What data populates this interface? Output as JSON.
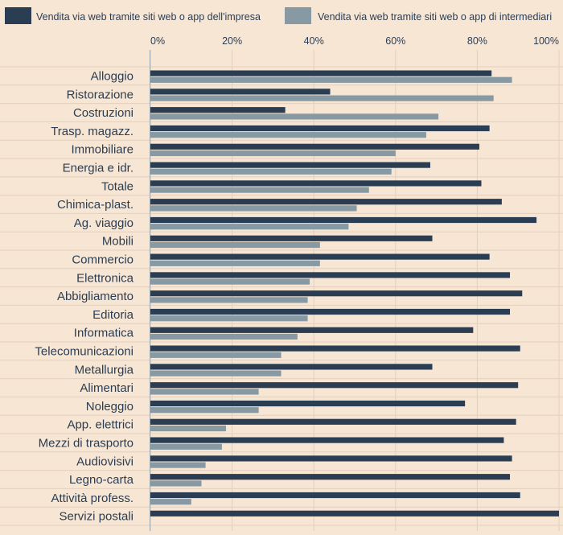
{
  "chart_data": {
    "type": "bar",
    "orientation": "horizontal",
    "title": "",
    "xlabel": "",
    "ylabel": "",
    "xlim": [
      0,
      100
    ],
    "x_ticks": [
      "0%",
      "20%",
      "40%",
      "60%",
      "80%",
      "100%"
    ],
    "x_tick_values": [
      0,
      20,
      40,
      60,
      80,
      100
    ],
    "legend_position": "top",
    "grid": true,
    "colors": {
      "series1": "#2b3d52",
      "series2": "#8799a2",
      "background": "#f7e6d4",
      "grid": "#e3cfbd",
      "text": "#2b3d52"
    },
    "categories": [
      "Alloggio",
      "Ristorazione",
      "Costruzioni",
      "Trasp. magazz.",
      "Immobiliare",
      "Energia e idr.",
      "Totale",
      "Chimica-plast.",
      "Ag. viaggio",
      "Mobili",
      "Commercio",
      "Elettronica",
      "Abbigliamento",
      "Editoria",
      "Informatica",
      "Telecomunicazioni",
      "Metallurgia",
      "Alimentari",
      "Noleggio",
      "App. elettrici",
      "Mezzi di trasporto",
      "Audiovisivi",
      "Legno-carta",
      "Attività profess.",
      "Servizi postali"
    ],
    "series": [
      {
        "name": "Vendita via web tramite siti web o app dell'impresa",
        "values": [
          83.5,
          44,
          33,
          83,
          80.5,
          68.5,
          81,
          86,
          94.5,
          69,
          83,
          88,
          91,
          88,
          79,
          90.5,
          69,
          90,
          77,
          89.5,
          86.5,
          88.5,
          88,
          90.5,
          100
        ]
      },
      {
        "name": "Vendita via web tramite siti web o app di intermediari",
        "values": [
          88.5,
          84,
          70.5,
          67.5,
          60,
          59,
          53.5,
          50.5,
          48.5,
          41.5,
          41.5,
          39,
          38.5,
          38.5,
          36,
          32,
          32,
          26.5,
          26.5,
          18.5,
          17.5,
          13.5,
          12.5,
          10,
          0
        ]
      }
    ]
  }
}
